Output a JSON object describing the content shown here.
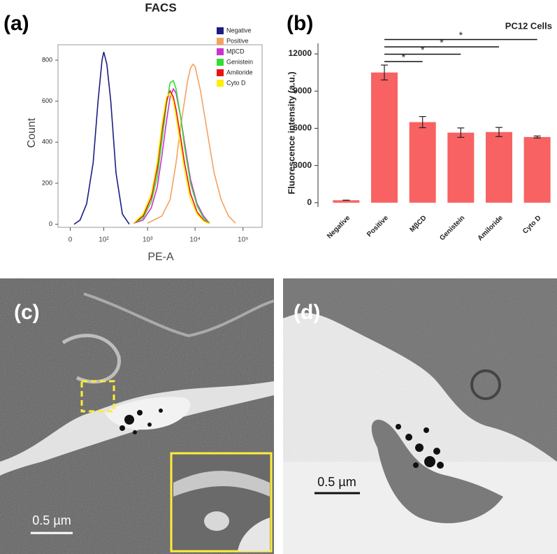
{
  "chart_data": [
    {
      "type": "line",
      "panel_label": "(a)",
      "title": "FACS",
      "xlabel": "PE-A",
      "ylabel": "Count",
      "xscale": "symlog",
      "linthresh": 25,
      "xlim": [
        -20,
        250000
      ],
      "ylim": [
        -15,
        875
      ],
      "xticks": [
        {
          "value": 0,
          "label": "0"
        },
        {
          "value": 100,
          "label": "10²"
        },
        {
          "value": 1000,
          "label": "10³"
        },
        {
          "value": 10000,
          "label": "10⁴"
        },
        {
          "value": 100000,
          "label": "10⁵"
        }
      ],
      "yticks": [
        0,
        200,
        400,
        600,
        800
      ],
      "series": [
        {
          "name": "Negative",
          "color": "#1c1c84",
          "x": [
            5,
            15,
            30,
            50,
            70,
            90,
            100,
            120,
            150,
            200,
            280,
            400
          ],
          "values": [
            0,
            20,
            100,
            300,
            600,
            800,
            840,
            780,
            600,
            250,
            50,
            0
          ]
        },
        {
          "name": "Positive",
          "color": "#f4a260",
          "x": [
            1000,
            2000,
            3000,
            4000,
            5000,
            6000,
            7000,
            8000,
            9000,
            10000,
            13000,
            18000,
            25000,
            35000,
            50000,
            70000
          ],
          "values": [
            5,
            40,
            120,
            300,
            480,
            600,
            700,
            760,
            780,
            770,
            650,
            450,
            250,
            120,
            40,
            5
          ]
        },
        {
          "name": "MβCD",
          "color": "#cc33cc",
          "x": [
            500,
            800,
            1200,
            1600,
            2000,
            2500,
            3000,
            3500,
            4000,
            5000,
            6000,
            8000,
            11000,
            15000,
            20000
          ],
          "values": [
            5,
            20,
            80,
            180,
            330,
            500,
            620,
            660,
            640,
            520,
            400,
            220,
            100,
            40,
            5
          ]
        },
        {
          "name": "Genistein",
          "color": "#33dd33",
          "x": [
            500,
            800,
            1200,
            1600,
            2000,
            2500,
            3000,
            3500,
            4000,
            5000,
            6000,
            8000,
            11000,
            15000,
            20000
          ],
          "values": [
            5,
            30,
            110,
            230,
            400,
            580,
            690,
            700,
            660,
            520,
            380,
            200,
            90,
            30,
            5
          ]
        },
        {
          "name": "Amiloride",
          "color": "#ee1111",
          "x": [
            500,
            800,
            1200,
            1600,
            2000,
            2500,
            3000,
            3500,
            4000,
            5000,
            6000,
            8000,
            11000,
            15000,
            20000
          ],
          "values": [
            5,
            40,
            130,
            270,
            450,
            600,
            650,
            620,
            560,
            420,
            300,
            150,
            60,
            20,
            3
          ]
        },
        {
          "name": "Cyto D",
          "color": "#ffee00",
          "x": [
            500,
            800,
            1200,
            1600,
            2000,
            2500,
            3000,
            3500,
            4000,
            5000,
            6000,
            8000,
            11000,
            15000,
            20000
          ],
          "values": [
            5,
            50,
            150,
            300,
            480,
            620,
            640,
            600,
            520,
            380,
            260,
            120,
            50,
            15,
            3
          ]
        }
      ]
    },
    {
      "type": "bar",
      "panel_label": "(b)",
      "title": "PC12 Cells",
      "ylabel": "Fluorescence intensity (a.u.)",
      "categories": [
        "Negative",
        "Positive",
        "MβCD",
        "Genistein",
        "Amiloride",
        "Cyto D"
      ],
      "values": [
        200,
        10500,
        6500,
        5650,
        5700,
        5300
      ],
      "errors": [
        0,
        600,
        450,
        380,
        370,
        80
      ],
      "color": "#f86262",
      "ylim": [
        -350,
        12850
      ],
      "yticks": [
        0,
        3000,
        6000,
        9000,
        12000
      ],
      "significance": [
        {
          "from": 1,
          "to": 2,
          "label": "*"
        },
        {
          "from": 1,
          "to": 3,
          "label": "*"
        },
        {
          "from": 1,
          "to": 4,
          "label": "*"
        },
        {
          "from": 1,
          "to": 5,
          "label": "*"
        }
      ]
    }
  ],
  "images": [
    {
      "label": "(c)",
      "scale_bar": "0.5 µm"
    },
    {
      "label": "(d)",
      "scale_bar": "0.5 µm"
    }
  ]
}
